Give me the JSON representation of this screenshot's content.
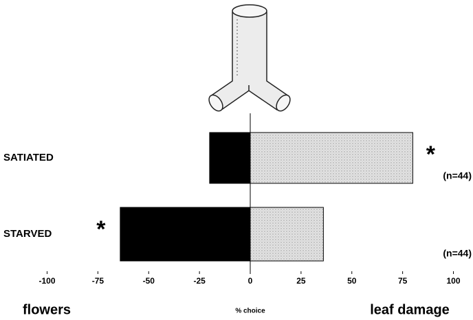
{
  "chart_data": {
    "type": "bar",
    "orientation": "horizontal",
    "categories": [
      "SATIATED",
      "STARVED"
    ],
    "series": [
      {
        "name": "flowers",
        "color": "#000000",
        "values": [
          -20,
          -64
        ]
      },
      {
        "name": "leaf damage",
        "color": "#d4d4d4",
        "pattern": "stipple",
        "values": [
          80,
          36
        ]
      }
    ],
    "xlabel": "% choice",
    "xlim": [
      -100,
      100
    ],
    "xticks": [
      -100,
      -75,
      -50,
      -25,
      0,
      25,
      50,
      75,
      100
    ],
    "grid": false,
    "sample_sizes": [
      "(n=44)",
      "(n=44)"
    ],
    "significance": [
      "*",
      "*"
    ]
  }
}
